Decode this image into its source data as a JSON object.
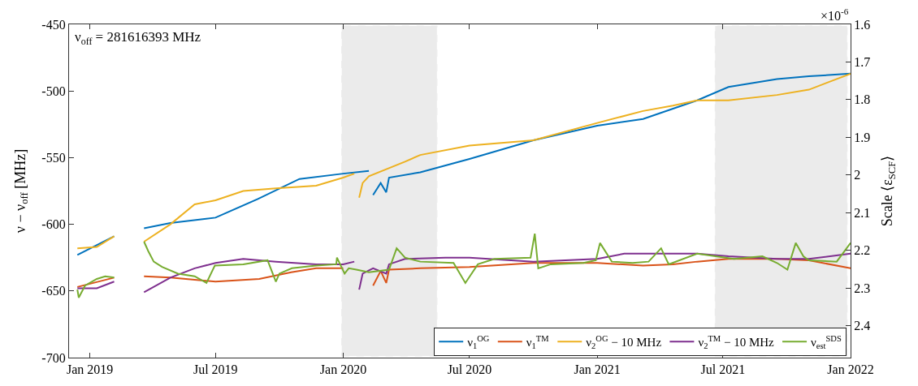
{
  "chart_data": {
    "type": "line",
    "xlabel": null,
    "ylabel": "ν − ν$_{off}$ [MHz]",
    "y2label": "Scale ⟨ε$_{SCF}$⟩",
    "annotations": [
      "ν$_{off}$ = 281616393 MHz",
      "×10$^{-6}$"
    ],
    "xlim": [
      "2018-12-02",
      "2022-01-01"
    ],
    "xticks": [
      {
        "value": "2019-01-01",
        "label": "Jan 2019"
      },
      {
        "value": "2019-07-01",
        "label": "Jul 2019"
      },
      {
        "value": "2020-01-01",
        "label": "Jan 2020"
      },
      {
        "value": "2020-07-01",
        "label": "Jul 2020"
      },
      {
        "value": "2021-01-01",
        "label": "Jan 2021"
      },
      {
        "value": "2021-07-01",
        "label": "Jul 2021"
      },
      {
        "value": "2022-01-01",
        "label": "Jan 2022"
      }
    ],
    "ylim": [
      -700,
      -450
    ],
    "yticks": [
      -700,
      -650,
      -600,
      -550,
      -500,
      -450
    ],
    "y2lim": [
      2.485,
      1.6
    ],
    "y2ticks": [
      1.6,
      1.7,
      1.8,
      1.9,
      2,
      2.1,
      2.2,
      2.3,
      2.4
    ],
    "grid": false,
    "legend": "bottom right",
    "marker": "none",
    "line_style": "solid",
    "bands": [
      {
        "axis": "x",
        "from": "2019-12-30",
        "to": "2020-05-15",
        "color": "#808080"
      },
      {
        "axis": "x",
        "from": "2021-06-20",
        "to": "2021-12-27",
        "color": "#808080"
      }
    ],
    "series": [
      {
        "name": "ν$_{1}$$^{OG}$",
        "color": "#0072bd",
        "x": [
          "2018-12-14",
          "2019-02-05",
          "2019-02-20",
          "2019-03-20",
          "2019-04-27",
          "2019-07-01",
          "2019-08-31",
          "2019-10-30",
          "2020-01-01",
          "2020-02-07",
          "2020-02-10",
          "2020-02-13",
          "2020-02-24",
          "2020-03-03",
          "2020-03-07",
          "2020-04-21",
          "2020-07-01",
          "2020-10-01",
          "2021-01-01",
          "2021-03-08",
          "2021-05-25",
          "2021-07-09",
          "2021-09-17",
          "2021-11-02",
          "2022-01-01"
        ],
        "values": [
          -623,
          -609,
          null,
          -603,
          -599,
          -595,
          -581,
          -566,
          -562,
          -560,
          null,
          -578,
          -569,
          -576,
          -565,
          -561,
          -551,
          -537,
          -526,
          -521,
          -507,
          -497,
          -491,
          -489,
          -487
        ]
      },
      {
        "name": "ν$_{1}$$^{TM}$",
        "color": "#d95319",
        "x": [
          "2018-12-14",
          "2019-02-05",
          "2019-02-20",
          "2019-03-20",
          "2019-04-27",
          "2019-07-01",
          "2019-09-02",
          "2019-10-18",
          "2019-11-23",
          "2020-01-01",
          "2020-02-05",
          "2020-02-13",
          "2020-02-24",
          "2020-03-03",
          "2020-03-07",
          "2020-04-21",
          "2020-07-01",
          "2020-10-01",
          "2021-01-01",
          "2021-03-08",
          "2021-04-20",
          "2021-05-25",
          "2021-07-09",
          "2021-09-17",
          "2021-11-02",
          "2022-01-01"
        ],
        "values": [
          -647,
          -640,
          null,
          -639,
          -640,
          -643,
          -641,
          -636,
          -633,
          -633,
          null,
          -646,
          -635,
          -644,
          -634,
          -633,
          -632,
          -629,
          -629,
          -631,
          -630,
          -628,
          -626,
          -626,
          -627,
          -633
        ]
      },
      {
        "name": "ν$_{2}$$^{OG}$ − 10 MHz",
        "color": "#edb120",
        "x": [
          "2018-12-14",
          "2019-01-11",
          "2019-02-05",
          "2019-02-20",
          "2019-03-20",
          "2019-04-27",
          "2019-06-01",
          "2019-07-01",
          "2019-08-10",
          "2019-09-26",
          "2019-11-23",
          "2020-01-01",
          "2020-01-17",
          "2020-01-20",
          "2020-01-24",
          "2020-01-29",
          "2020-02-07",
          "2020-03-30",
          "2020-04-21",
          "2020-07-01",
          "2020-10-01",
          "2021-01-01",
          "2021-03-08",
          "2021-04-20",
          "2021-05-25",
          "2021-07-09",
          "2021-09-17",
          "2021-11-02",
          "2022-01-01"
        ],
        "values": [
          -618,
          -617,
          -609,
          null,
          -613,
          -600,
          -585,
          -582,
          -575,
          -573,
          -571,
          -565,
          -562,
          null,
          -580,
          -569,
          -564,
          -553,
          -548,
          -541,
          -537,
          -524,
          -515,
          -511,
          -507,
          -507,
          -503,
          -499,
          -487
        ]
      },
      {
        "name": "ν$_{2}$$^{TM}$ − 10 MHz",
        "color": "#7e2f8e",
        "x": [
          "2018-12-14",
          "2019-01-11",
          "2019-02-05",
          "2019-02-20",
          "2019-03-20",
          "2019-04-27",
          "2019-06-01",
          "2019-07-01",
          "2019-08-10",
          "2019-09-26",
          "2019-11-23",
          "2020-01-01",
          "2020-01-17",
          "2020-01-20",
          "2020-01-24",
          "2020-01-29",
          "2020-02-13",
          "2020-03-03",
          "2020-03-07",
          "2020-03-30",
          "2020-05-27",
          "2020-07-01",
          "2020-10-01",
          "2021-01-01",
          "2021-02-09",
          "2021-03-08",
          "2021-05-25",
          "2021-07-09",
          "2021-09-17",
          "2021-11-02",
          "2022-01-01"
        ],
        "values": [
          -648,
          -648,
          -643,
          null,
          -651,
          -640,
          -633,
          -629,
          -626,
          -628,
          -630,
          -630,
          -628,
          null,
          -649,
          -637,
          -633,
          -637,
          -630,
          -626,
          -625,
          -625,
          -628,
          -626,
          -622,
          -622,
          -622,
          -624,
          -626,
          -626,
          -622
        ]
      },
      {
        "name": "ν$_{est}$$^{SDS}$",
        "color": "#77ac30",
        "x": [
          "2018-12-14",
          "2018-12-16",
          "2018-12-25",
          "2019-01-11",
          "2019-01-23",
          "2019-02-05",
          "2019-02-20",
          "2019-03-20",
          "2019-03-26",
          "2019-04-03",
          "2019-04-15",
          "2019-05-08",
          "2019-06-01",
          "2019-06-18",
          "2019-06-30",
          "2019-08-10",
          "2019-09-14",
          "2019-09-26",
          "2019-10-01",
          "2019-10-19",
          "2019-11-23",
          "2019-12-22",
          "2019-12-23",
          "2020-01-03",
          "2020-01-09",
          "2020-01-20",
          "2020-02-07",
          "2020-03-07",
          "2020-03-18",
          "2020-03-30",
          "2020-04-21",
          "2020-06-08",
          "2020-06-25",
          "2020-07-13",
          "2020-08-06",
          "2020-09-27",
          "2020-10-03",
          "2020-10-08",
          "2020-10-26",
          "2020-12-12",
          "2020-12-30",
          "2021-01-05",
          "2021-01-22",
          "2021-02-21",
          "2021-03-16",
          "2021-04-03",
          "2021-04-14",
          "2021-05-25",
          "2021-07-17",
          "2021-08-27",
          "2021-09-17",
          "2021-10-02",
          "2021-10-14",
          "2021-10-25",
          "2021-11-02",
          "2021-12-12",
          "2022-01-01"
        ],
        "values": [
          -649,
          -655,
          -646,
          -641,
          -639,
          -640,
          null,
          -613,
          -620,
          -628,
          -632,
          -637,
          -639,
          -644,
          -631,
          -630,
          -627,
          -643,
          -637,
          -633,
          -631,
          -630,
          -625,
          -637,
          -633,
          -634,
          -636,
          -634,
          -618,
          -625,
          -628,
          -629,
          -644,
          -630,
          -626,
          -625,
          -607,
          -633,
          -630,
          -629,
          -627,
          -614,
          -628,
          -629,
          -628,
          -618,
          -630,
          -622,
          -626,
          -624,
          -629,
          -634,
          -614,
          -624,
          -627,
          -628,
          -614
        ]
      }
    ]
  }
}
